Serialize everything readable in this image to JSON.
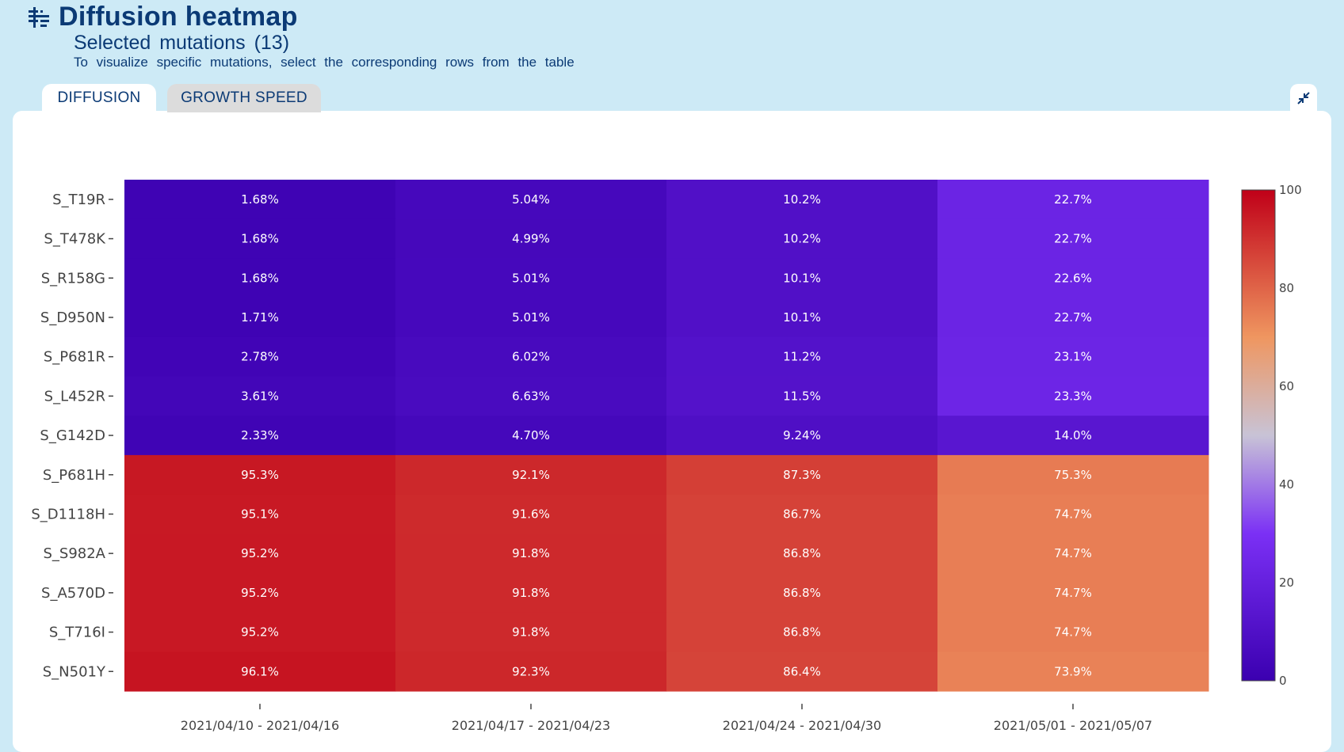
{
  "header": {
    "title": "Diffusion heatmap",
    "subtitle": "Selected mutations (13)",
    "hint": "To visualize specific mutations, select the corresponding rows from the table",
    "icon": "filter-list-icon"
  },
  "tabs": [
    {
      "label": "DIFFUSION",
      "active": true
    },
    {
      "label": "GROWTH SPEED",
      "active": false
    }
  ],
  "controls": {
    "collapse_icon": "collapse-arrows-icon"
  },
  "colors": {
    "accent": "#0b3a75",
    "background": "#cdeaf6",
    "colorscale": [
      "#3b00b0",
      "#7b30f5",
      "#c8c3d6",
      "#ef9660",
      "#c00018"
    ]
  },
  "chart_data": {
    "type": "heatmap",
    "categories": [
      "2021/04/10 - 2021/04/16",
      "2021/04/17 - 2021/04/23",
      "2021/04/24 - 2021/04/30",
      "2021/05/01 - 2021/05/07"
    ],
    "rows": [
      "S_T19R",
      "S_T478K",
      "S_R158G",
      "S_D950N",
      "S_P681R",
      "S_L452R",
      "S_G142D",
      "S_P681H",
      "S_D1118H",
      "S_S982A",
      "S_A570D",
      "S_T716I",
      "S_N501Y"
    ],
    "values": [
      [
        1.68,
        5.04,
        10.2,
        22.7
      ],
      [
        1.68,
        4.99,
        10.2,
        22.7
      ],
      [
        1.68,
        5.01,
        10.1,
        22.6
      ],
      [
        1.71,
        5.01,
        10.1,
        22.7
      ],
      [
        2.78,
        6.02,
        11.2,
        23.1
      ],
      [
        3.61,
        6.63,
        11.5,
        23.3
      ],
      [
        2.33,
        4.7,
        9.24,
        14.0
      ],
      [
        95.3,
        92.1,
        87.3,
        75.3
      ],
      [
        95.1,
        91.6,
        86.7,
        74.7
      ],
      [
        95.2,
        91.8,
        86.8,
        74.7
      ],
      [
        95.2,
        91.8,
        86.8,
        74.7
      ],
      [
        95.2,
        91.8,
        86.8,
        74.7
      ],
      [
        96.1,
        92.3,
        86.4,
        73.9
      ]
    ],
    "labels": [
      [
        "1.68%",
        "5.04%",
        "10.2%",
        "22.7%"
      ],
      [
        "1.68%",
        "4.99%",
        "10.2%",
        "22.7%"
      ],
      [
        "1.68%",
        "5.01%",
        "10.1%",
        "22.6%"
      ],
      [
        "1.71%",
        "5.01%",
        "10.1%",
        "22.7%"
      ],
      [
        "2.78%",
        "6.02%",
        "11.2%",
        "23.1%"
      ],
      [
        "3.61%",
        "6.63%",
        "11.5%",
        "23.3%"
      ],
      [
        "2.33%",
        "4.70%",
        "9.24%",
        "14.0%"
      ],
      [
        "95.3%",
        "92.1%",
        "87.3%",
        "75.3%"
      ],
      [
        "95.1%",
        "91.6%",
        "86.7%",
        "74.7%"
      ],
      [
        "95.2%",
        "91.8%",
        "86.8%",
        "74.7%"
      ],
      [
        "95.2%",
        "91.8%",
        "86.8%",
        "74.7%"
      ],
      [
        "95.2%",
        "91.8%",
        "86.8%",
        "74.7%"
      ],
      [
        "96.1%",
        "92.3%",
        "86.4%",
        "73.9%"
      ]
    ],
    "colorbar": {
      "range": [
        0,
        100
      ],
      "ticks": [
        0,
        20,
        40,
        60,
        80,
        100
      ]
    },
    "legend_position": "right"
  }
}
